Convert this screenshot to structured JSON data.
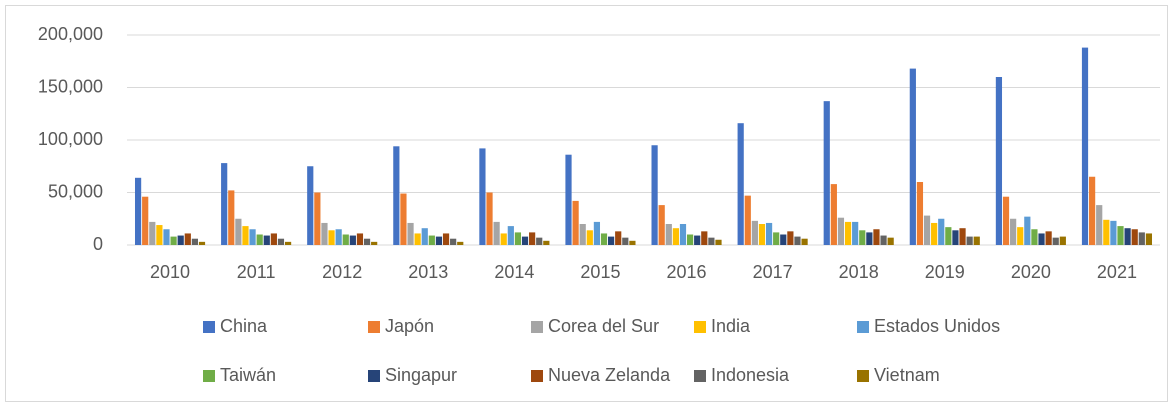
{
  "chart_data": {
    "type": "bar",
    "categories": [
      "2010",
      "2011",
      "2012",
      "2013",
      "2014",
      "2015",
      "2016",
      "2017",
      "2018",
      "2019",
      "2020",
      "2021"
    ],
    "series": [
      {
        "name": "China",
        "color": "#4472c4",
        "values": [
          64000,
          78000,
          75000,
          94000,
          92000,
          86000,
          95000,
          116000,
          137000,
          168000,
          160000,
          188000
        ]
      },
      {
        "name": "Japón",
        "color": "#ed7d31",
        "values": [
          46000,
          52000,
          50000,
          49000,
          50000,
          42000,
          38000,
          47000,
          58000,
          60000,
          46000,
          65000
        ]
      },
      {
        "name": "Corea del Sur",
        "color": "#a5a5a5",
        "values": [
          22000,
          25000,
          21000,
          21000,
          22000,
          20000,
          20000,
          23000,
          26000,
          28000,
          25000,
          38000
        ]
      },
      {
        "name": "India",
        "color": "#ffc000",
        "values": [
          19000,
          18000,
          14000,
          11000,
          11000,
          14000,
          16000,
          20000,
          22000,
          21000,
          17000,
          24000
        ]
      },
      {
        "name": "Estados Unidos",
        "color": "#5b9bd5",
        "values": [
          15000,
          15000,
          15000,
          16000,
          18000,
          22000,
          20000,
          21000,
          22000,
          25000,
          27000,
          23000
        ]
      },
      {
        "name": "Taiwán",
        "color": "#70ad47",
        "values": [
          8000,
          10000,
          10000,
          9000,
          12000,
          11000,
          10000,
          12000,
          14000,
          17000,
          15000,
          18000
        ]
      },
      {
        "name": "Singapur",
        "color": "#264478",
        "values": [
          9000,
          9000,
          9000,
          8000,
          8000,
          8000,
          9000,
          10000,
          12000,
          14000,
          11000,
          16000
        ]
      },
      {
        "name": "Nueva Zelanda",
        "color": "#9e480e",
        "values": [
          11000,
          11000,
          11000,
          11000,
          12000,
          13000,
          13000,
          13000,
          15000,
          16000,
          13000,
          15000
        ]
      },
      {
        "name": "Indonesia",
        "color": "#636363",
        "values": [
          6000,
          6000,
          6000,
          6000,
          7000,
          7000,
          7000,
          8000,
          9000,
          8000,
          7000,
          12000
        ]
      },
      {
        "name": "Vietnam",
        "color": "#997300",
        "values": [
          3000,
          3000,
          3000,
          3000,
          4000,
          4000,
          5000,
          6000,
          7000,
          8000,
          8000,
          11000
        ]
      }
    ],
    "ylim": [
      0,
      200000
    ],
    "yticks": [
      0,
      {
        "value": 50000,
        "label": "50,000"
      },
      {
        "value": 100000,
        "label": "100,000"
      },
      {
        "value": 150000,
        "label": "150,000"
      },
      {
        "value": 200000,
        "label": "200,000"
      }
    ],
    "grid": true,
    "legend": "bottom"
  }
}
